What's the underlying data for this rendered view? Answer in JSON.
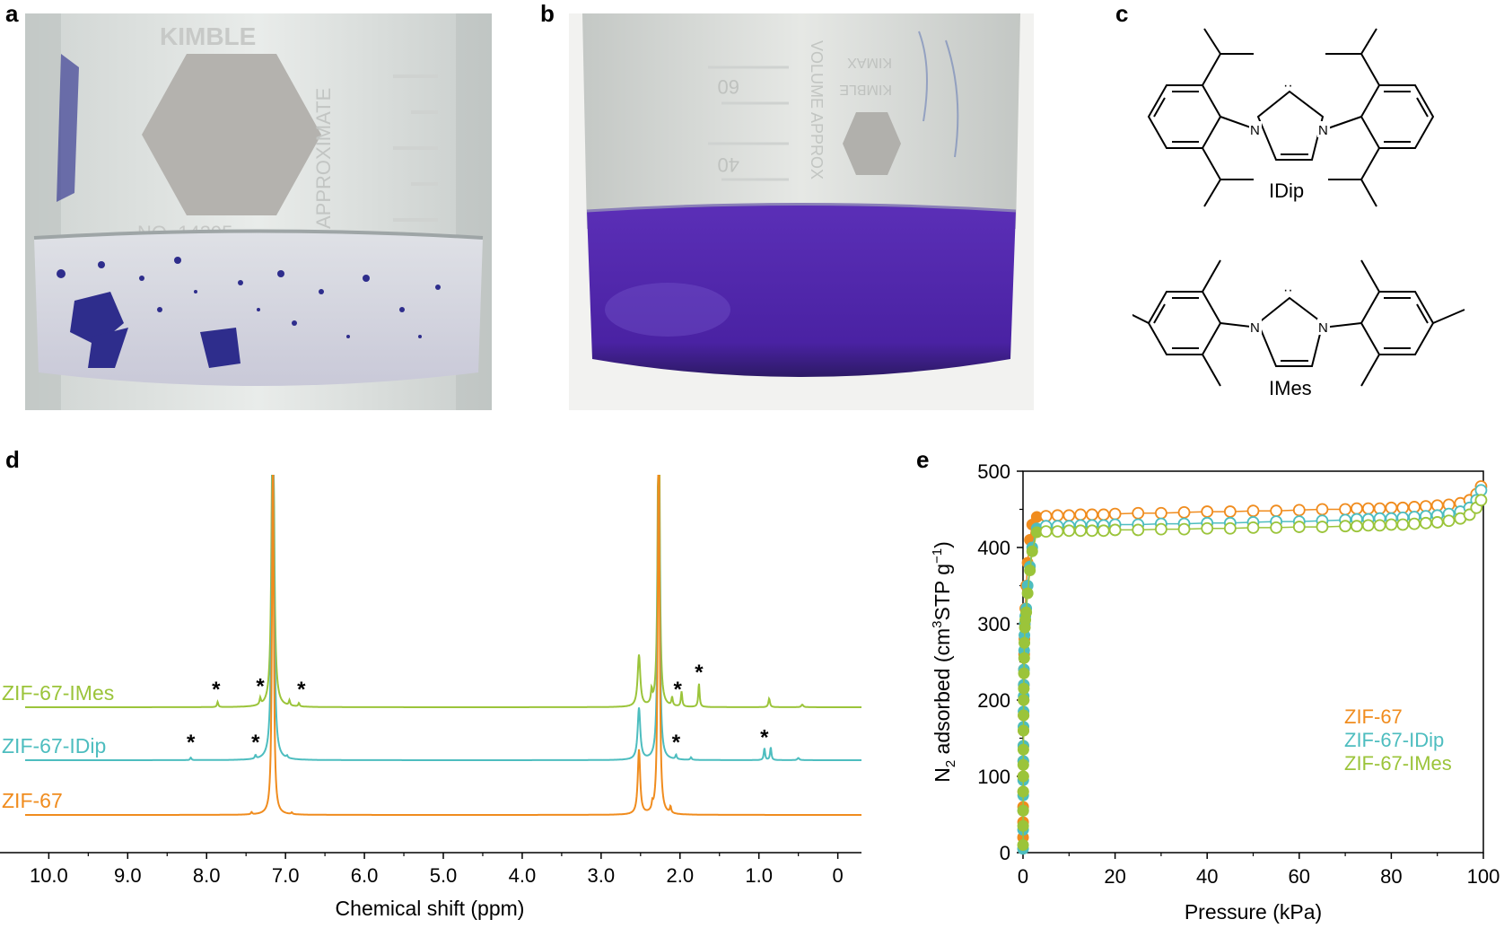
{
  "panels": {
    "a": "a",
    "b": "b",
    "c": "c",
    "d": "d",
    "e": "e"
  },
  "photo_a": {
    "labels": [
      "KIMBLE",
      "APPROXIMATE",
      "NO. 14395",
      "60",
      "40",
      "20"
    ],
    "glass_tint": "#e6e9e6",
    "crystal_color": "#2e2d8c"
  },
  "photo_b": {
    "labels": [
      "60",
      "40",
      "VOLUME APPROX",
      "KIMAX",
      "KIMBLE"
    ],
    "solution_color": "#4b23a6"
  },
  "structures": {
    "idip_label": "IDip",
    "imes_label": "IMes",
    "atom_n": "N",
    "carbene_dots": "··"
  },
  "colors": {
    "zif67": "#f08c1e",
    "idip": "#4dbdbf",
    "imes": "#9bc43a"
  },
  "chart_data": [
    {
      "type": "line",
      "panel": "d",
      "xlabel": "Chemical shift (ppm)",
      "ylabel": "",
      "xlim": [
        10.3,
        -0.3
      ],
      "x_ticks": [
        "10.0",
        "9.0",
        "8.0",
        "7.0",
        "6.0",
        "5.0",
        "4.0",
        "3.0",
        "2.0",
        "1.0",
        "0"
      ],
      "x_tick_values": [
        10,
        9,
        8,
        7,
        6,
        5,
        4,
        3,
        2,
        1,
        0
      ],
      "series": [
        {
          "name": "ZIF-67-IMes",
          "peaks": [
            {
              "ppm": 7.16,
              "height": 10.0,
              "width": 0.015
            },
            {
              "ppm": 2.52,
              "height": 1.2,
              "width": 0.02
            },
            {
              "ppm": 2.27,
              "height": 10.0,
              "width": 0.012
            },
            {
              "ppm": 7.86,
              "height": 0.12,
              "width": 0.01
            },
            {
              "ppm": 7.32,
              "height": 0.15,
              "width": 0.01
            },
            {
              "ppm": 6.95,
              "height": 0.12,
              "width": 0.01
            },
            {
              "ppm": 6.83,
              "height": 0.08,
              "width": 0.01
            },
            {
              "ppm": 2.36,
              "height": 0.3,
              "width": 0.01
            },
            {
              "ppm": 1.98,
              "height": 0.35,
              "width": 0.01
            },
            {
              "ppm": 1.76,
              "height": 0.55,
              "width": 0.01
            },
            {
              "ppm": 2.1,
              "height": 0.2,
              "width": 0.01
            },
            {
              "ppm": 0.87,
              "height": 0.2,
              "width": 0.012
            },
            {
              "ppm": 0.45,
              "height": 0.06,
              "width": 0.015
            }
          ]
        },
        {
          "name": "ZIF-67-IDip",
          "peaks": [
            {
              "ppm": 7.16,
              "height": 10.0,
              "width": 0.015
            },
            {
              "ppm": 2.52,
              "height": 1.2,
              "width": 0.02
            },
            {
              "ppm": 2.27,
              "height": 10.0,
              "width": 0.012
            },
            {
              "ppm": 8.2,
              "height": 0.06,
              "width": 0.01
            },
            {
              "ppm": 7.38,
              "height": 0.08,
              "width": 0.01
            },
            {
              "ppm": 6.98,
              "height": 0.05,
              "width": 0.01
            },
            {
              "ppm": 2.05,
              "height": 0.1,
              "width": 0.01
            },
            {
              "ppm": 1.86,
              "height": 0.06,
              "width": 0.01
            },
            {
              "ppm": 0.93,
              "height": 0.28,
              "width": 0.01
            },
            {
              "ppm": 0.85,
              "height": 0.3,
              "width": 0.01
            },
            {
              "ppm": 0.5,
              "height": 0.05,
              "width": 0.015
            }
          ]
        },
        {
          "name": "ZIF-67",
          "peaks": [
            {
              "ppm": 7.16,
              "height": 9.6,
              "width": 0.012
            },
            {
              "ppm": 2.52,
              "height": 1.5,
              "width": 0.018
            },
            {
              "ppm": 2.27,
              "height": 10.0,
              "width": 0.012
            },
            {
              "ppm": 2.35,
              "height": 0.15,
              "width": 0.01
            },
            {
              "ppm": 2.12,
              "height": 0.15,
              "width": 0.01
            },
            {
              "ppm": 7.43,
              "height": 0.05,
              "width": 0.01
            },
            {
              "ppm": 6.92,
              "height": 0.04,
              "width": 0.01
            }
          ]
        }
      ],
      "asterisks": [
        {
          "series": "ZIF-67-IMes",
          "ppm": [
            7.88,
            7.32,
            6.8,
            2.03,
            1.76
          ]
        },
        {
          "series": "ZIF-67-IDip",
          "ppm": [
            8.2,
            7.38,
            2.05,
            0.93
          ]
        }
      ],
      "annotation": "*"
    },
    {
      "type": "scatter",
      "panel": "e",
      "xlabel": "Pressure (kPa)",
      "ylabel_parts": [
        "N",
        "2",
        " adsorbed (cm",
        "3",
        "STP g",
        "−1",
        ")"
      ],
      "xlim": [
        0,
        100
      ],
      "ylim": [
        0,
        500
      ],
      "x_ticks": [
        "0",
        "20",
        "40",
        "60",
        "80",
        "100"
      ],
      "y_ticks": [
        "0",
        "100",
        "200",
        "300",
        "400",
        "500"
      ],
      "legend_position": "bottom-right",
      "series": [
        {
          "name": "ZIF-67",
          "adsorption": {
            "x": [
              0.01,
              0.02,
              0.03,
              0.04,
              0.05,
              0.06,
              0.08,
              0.1,
              0.12,
              0.14,
              0.17,
              0.2,
              0.25,
              0.3,
              0.4,
              0.5,
              0.7,
              1.0,
              1.5,
              2.0,
              3.0
            ],
            "y": [
              20,
              40,
              60,
              80,
              100,
              120,
              140,
              160,
              180,
              200,
              220,
              240,
              260,
              280,
              300,
              320,
              350,
              380,
              410,
              430,
              440
            ]
          },
          "plateau": {
            "x": [
              5,
              7.5,
              10,
              12.5,
              15,
              17.5,
              20,
              25,
              30,
              35,
              40,
              45,
              50,
              55,
              60,
              65,
              70,
              72.5,
              75,
              77.5,
              80,
              82.5,
              85,
              87.5,
              90,
              92.5,
              95,
              97,
              98.5,
              99.5
            ],
            "y": [
              441,
              442,
              442,
              443,
              443,
              443,
              444,
              445,
              445,
              446,
              447,
              447,
              448,
              448,
              449,
              450,
              450,
              451,
              451,
              451,
              452,
              452,
              453,
              454,
              455,
              456,
              458,
              462,
              470,
              480
            ]
          }
        },
        {
          "name": "ZIF-67-IDip",
          "adsorption": {
            "x": [
              0.01,
              0.02,
              0.03,
              0.04,
              0.05,
              0.06,
              0.08,
              0.1,
              0.12,
              0.14,
              0.17,
              0.2,
              0.25,
              0.3,
              0.4,
              0.5,
              0.7,
              1.0,
              1.5,
              2.0,
              3.0
            ],
            "y": [
              5,
              30,
              55,
              75,
              95,
              120,
              140,
              165,
              185,
              205,
              220,
              240,
              265,
              285,
              300,
              310,
              320,
              350,
              375,
              400,
              425
            ]
          },
          "plateau": {
            "x": [
              5,
              7.5,
              10,
              12.5,
              15,
              17.5,
              20,
              25,
              30,
              35,
              40,
              45,
              50,
              55,
              60,
              65,
              70,
              72.5,
              75,
              77.5,
              80,
              82.5,
              85,
              87.5,
              90,
              92.5,
              95,
              97,
              98.5,
              99.5
            ],
            "y": [
              428,
              428,
              428,
              429,
              429,
              429,
              430,
              430,
              431,
              431,
              432,
              432,
              433,
              434,
              434,
              435,
              436,
              437,
              437,
              438,
              438,
              439,
              440,
              441,
              442,
              444,
              447,
              452,
              462,
              475
            ]
          }
        },
        {
          "name": "ZIF-67-IMes",
          "adsorption": {
            "x": [
              0.01,
              0.02,
              0.03,
              0.04,
              0.05,
              0.06,
              0.08,
              0.1,
              0.12,
              0.14,
              0.17,
              0.2,
              0.25,
              0.3,
              0.4,
              0.5,
              0.7,
              1.0,
              1.5,
              2.0,
              3.0
            ],
            "y": [
              10,
              35,
              55,
              80,
              100,
              115,
              135,
              160,
              180,
              200,
              215,
              235,
              255,
              275,
              295,
              305,
              315,
              340,
              370,
              395,
              420
            ]
          },
          "plateau": {
            "x": [
              5,
              7.5,
              10,
              12.5,
              15,
              17.5,
              20,
              25,
              30,
              35,
              40,
              45,
              50,
              55,
              60,
              65,
              70,
              72.5,
              75,
              77.5,
              80,
              82.5,
              85,
              87.5,
              90,
              92.5,
              95,
              97,
              98.5,
              99.5
            ],
            "y": [
              421,
              421,
              422,
              422,
              422,
              422,
              423,
              423,
              424,
              424,
              425,
              425,
              426,
              426,
              427,
              427,
              428,
              428,
              429,
              429,
              430,
              430,
              431,
              432,
              433,
              435,
              438,
              443,
              452,
              462
            ]
          }
        }
      ]
    }
  ]
}
